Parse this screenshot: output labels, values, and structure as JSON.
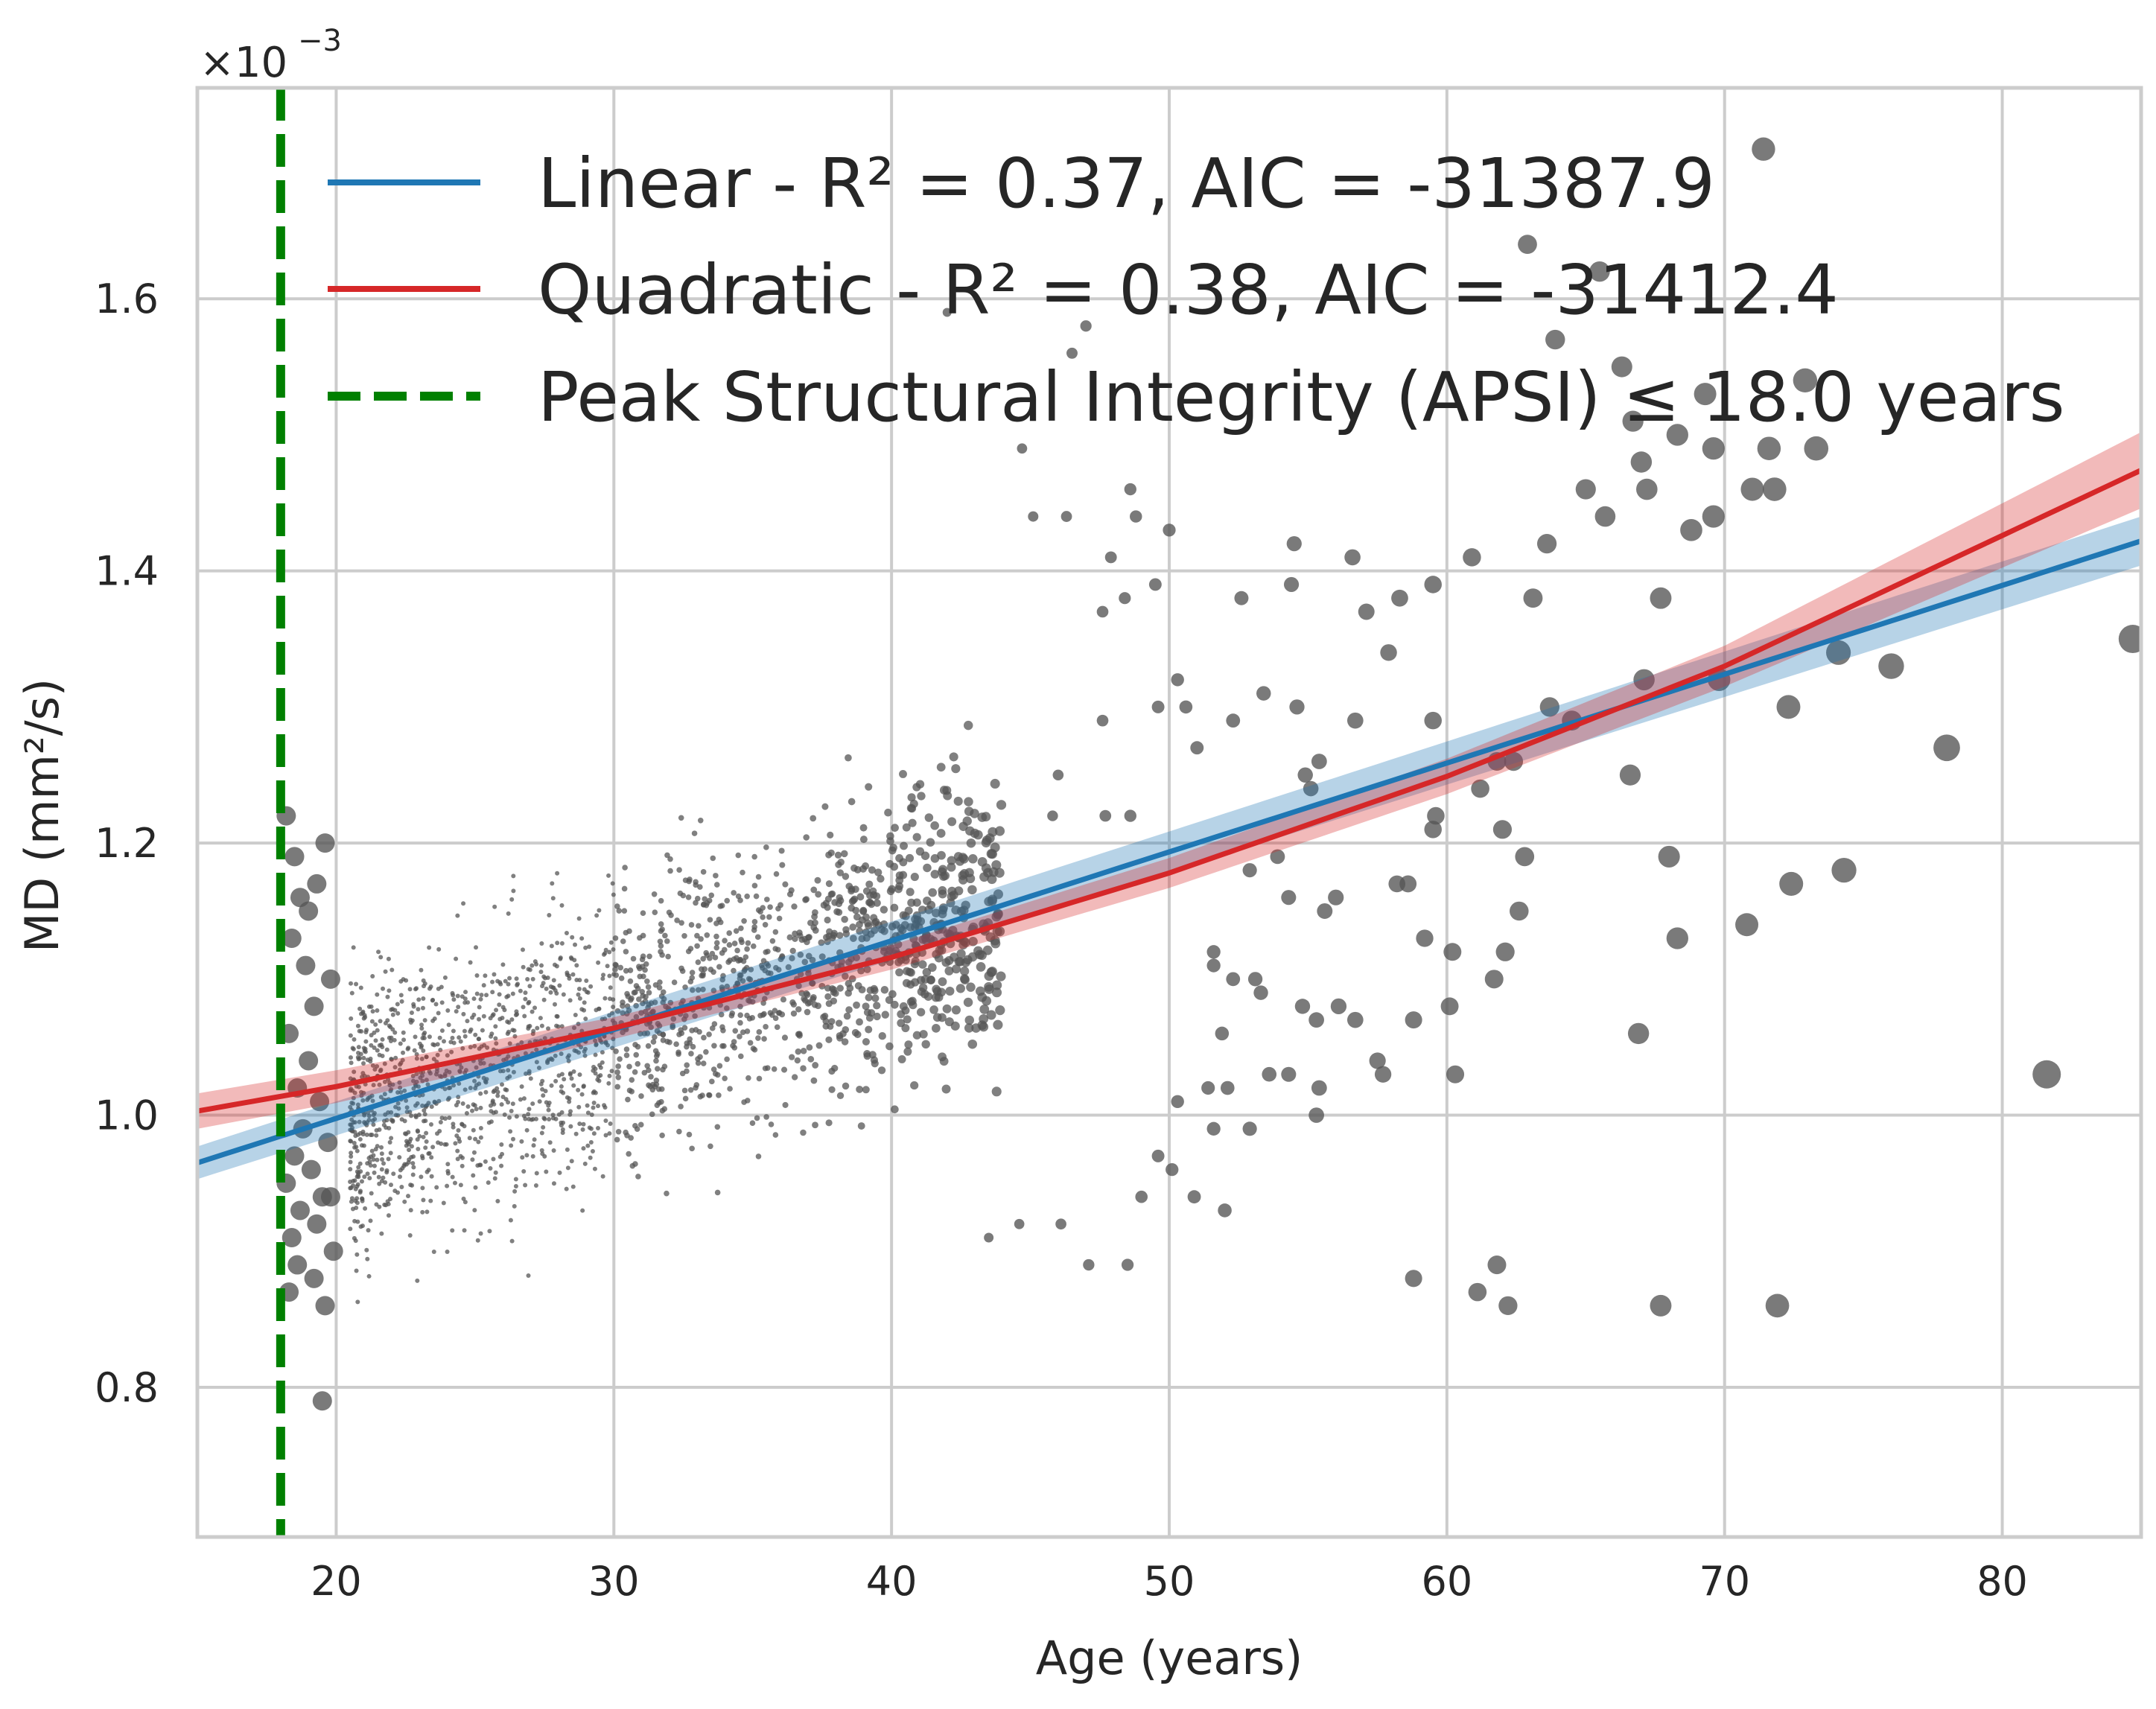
{
  "chart_data": {
    "type": "scatter",
    "xlabel": "Age (years)",
    "ylabel": "MD (mm²/s)",
    "y_multiplier": {
      "base": "×10",
      "exponent": "−3"
    },
    "xlim": [
      15,
      85
    ],
    "ylim": [
      0.69,
      1.755
    ],
    "xticks": [
      20,
      30,
      40,
      50,
      60,
      70,
      80
    ],
    "yticks": [
      0.8,
      1.0,
      1.2,
      1.4,
      1.6
    ],
    "xtick_labels": [
      "20",
      "30",
      "40",
      "50",
      "60",
      "70",
      "80"
    ],
    "ytick_labels": [
      "0.8",
      "1.0",
      "1.2",
      "1.4",
      "1.6"
    ],
    "grid": true,
    "legend_position": "top",
    "colors": {
      "linear": "#1f77b4",
      "quadratic": "#d62728",
      "apsi": "#008000",
      "points": "#555555",
      "grid": "#cccccc"
    },
    "series": [
      {
        "name": "Linear - R² = 0.37, AIC = -31387.9",
        "type": "line",
        "x": [
          15,
          85
        ],
        "y": [
          0.965,
          1.422
        ],
        "ci_halfwidth": [
          0.012,
          0.018
        ]
      },
      {
        "name": "Quadratic - R² = 0.38, AIC = -31412.4",
        "type": "line",
        "x": [
          15,
          20,
          30,
          40,
          50,
          60,
          70,
          85
        ],
        "y": [
          1.003,
          1.021,
          1.064,
          1.116,
          1.178,
          1.249,
          1.33,
          1.474
        ],
        "ci_halfwidth": [
          0.013,
          0.012,
          0.008,
          0.009,
          0.011,
          0.013,
          0.015,
          0.028
        ]
      },
      {
        "name": "Peak Structural Integrity (APSI) ≤ 18.0 years",
        "type": "vline",
        "x": 18.0
      }
    ],
    "scatter": {
      "note_size_grows_with_age": true,
      "points": [
        [
          18.2,
          1.22,
          2
        ],
        [
          18.5,
          1.19,
          2
        ],
        [
          18.7,
          1.16,
          2
        ],
        [
          19.0,
          1.15,
          2
        ],
        [
          19.3,
          1.17,
          2
        ],
        [
          19.6,
          1.2,
          2
        ],
        [
          18.4,
          1.13,
          2
        ],
        [
          18.9,
          1.11,
          2
        ],
        [
          19.8,
          1.1,
          2
        ],
        [
          19.2,
          1.08,
          2
        ],
        [
          18.3,
          1.06,
          2
        ],
        [
          19.0,
          1.04,
          2
        ],
        [
          18.6,
          1.02,
          2
        ],
        [
          19.4,
          1.01,
          2
        ],
        [
          18.8,
          0.99,
          2
        ],
        [
          19.7,
          0.98,
          2
        ],
        [
          18.5,
          0.97,
          2
        ],
        [
          19.1,
          0.96,
          2
        ],
        [
          18.2,
          0.95,
          2
        ],
        [
          19.5,
          0.94,
          2
        ],
        [
          18.7,
          0.93,
          2
        ],
        [
          19.3,
          0.92,
          2
        ],
        [
          18.4,
          0.91,
          2
        ],
        [
          19.9,
          0.9,
          2
        ],
        [
          18.6,
          0.89,
          2
        ],
        [
          19.2,
          0.88,
          2
        ],
        [
          18.3,
          0.87,
          2
        ],
        [
          19.6,
          0.86,
          2
        ],
        [
          19.5,
          0.79,
          2
        ],
        [
          19.8,
          0.94,
          2
        ],
        [
          44.7,
          1.49,
          1
        ],
        [
          42.0,
          1.59,
          1
        ],
        [
          46.5,
          1.56,
          1
        ],
        [
          47.0,
          1.58,
          1
        ],
        [
          48.6,
          1.46,
          1
        ],
        [
          48.8,
          1.44,
          1
        ],
        [
          46.3,
          1.44,
          1
        ],
        [
          45.1,
          1.44,
          1
        ],
        [
          50.0,
          1.43,
          1
        ],
        [
          47.9,
          1.41,
          1
        ],
        [
          49.5,
          1.39,
          1
        ],
        [
          48.4,
          1.38,
          1
        ],
        [
          47.6,
          1.37,
          1
        ],
        [
          52.6,
          1.38,
          1
        ],
        [
          54.4,
          1.39,
          1
        ],
        [
          54.5,
          1.42,
          1
        ],
        [
          56.6,
          1.41,
          1
        ],
        [
          59.5,
          1.39,
          1
        ],
        [
          57.9,
          1.34,
          1
        ],
        [
          58.3,
          1.38,
          1
        ],
        [
          57.1,
          1.37,
          1
        ],
        [
          50.3,
          1.32,
          1
        ],
        [
          50.6,
          1.3,
          1
        ],
        [
          53.4,
          1.31,
          1
        ],
        [
          54.6,
          1.3,
          1
        ],
        [
          56.7,
          1.29,
          1
        ],
        [
          51.0,
          1.27,
          1
        ],
        [
          52.3,
          1.29,
          1
        ],
        [
          55.4,
          1.26,
          1
        ],
        [
          54.9,
          1.25,
          1
        ],
        [
          55.1,
          1.24,
          1
        ],
        [
          49.6,
          1.3,
          1
        ],
        [
          47.6,
          1.29,
          1
        ],
        [
          46.0,
          1.25,
          1
        ],
        [
          45.8,
          1.22,
          1
        ],
        [
          47.7,
          1.22,
          1
        ],
        [
          48.6,
          1.22,
          1
        ],
        [
          52.9,
          1.18,
          1
        ],
        [
          53.9,
          1.19,
          1
        ],
        [
          54.3,
          1.16,
          1
        ],
        [
          55.6,
          1.15,
          1
        ],
        [
          56.0,
          1.16,
          1
        ],
        [
          51.6,
          1.12,
          1
        ],
        [
          51.6,
          1.11,
          1
        ],
        [
          52.3,
          1.1,
          1
        ],
        [
          53.1,
          1.1,
          1
        ],
        [
          53.3,
          1.09,
          1
        ],
        [
          54.8,
          1.08,
          1
        ],
        [
          55.3,
          1.07,
          1
        ],
        [
          56.1,
          1.08,
          1
        ],
        [
          56.7,
          1.07,
          1
        ],
        [
          51.9,
          1.06,
          1
        ],
        [
          53.6,
          1.03,
          1
        ],
        [
          54.3,
          1.03,
          1
        ],
        [
          55.4,
          1.02,
          1
        ],
        [
          50.3,
          1.01,
          1
        ],
        [
          51.4,
          1.02,
          1
        ],
        [
          52.1,
          1.02,
          1
        ],
        [
          51.6,
          0.99,
          1
        ],
        [
          52.9,
          0.99,
          1
        ],
        [
          50.1,
          0.96,
          1
        ],
        [
          50.9,
          0.94,
          1
        ],
        [
          52.0,
          0.93,
          1
        ],
        [
          55.3,
          1.0,
          1
        ],
        [
          49.6,
          0.97,
          1
        ],
        [
          49.0,
          0.94,
          1
        ],
        [
          47.1,
          0.89,
          1
        ],
        [
          48.5,
          0.89,
          1
        ],
        [
          46.1,
          0.92,
          1
        ],
        [
          43.5,
          0.91,
          1
        ],
        [
          44.6,
          0.92,
          1
        ],
        [
          60.9,
          1.41,
          1
        ],
        [
          61.2,
          1.24,
          1
        ],
        [
          61.8,
          1.26,
          1
        ],
        [
          62.0,
          1.21,
          1
        ],
        [
          62.4,
          1.26,
          1
        ],
        [
          62.8,
          1.19,
          1
        ],
        [
          62.6,
          1.15,
          1
        ],
        [
          62.1,
          1.12,
          1
        ],
        [
          61.7,
          1.1,
          1
        ],
        [
          60.2,
          1.12,
          1
        ],
        [
          59.2,
          1.13,
          1
        ],
        [
          60.1,
          1.08,
          1
        ],
        [
          58.2,
          1.17,
          1
        ],
        [
          58.6,
          1.17,
          1
        ],
        [
          59.5,
          1.21,
          1
        ],
        [
          59.6,
          1.22,
          1
        ],
        [
          59.5,
          1.29,
          1
        ],
        [
          63.1,
          1.38,
          1
        ],
        [
          62.9,
          1.64,
          1
        ],
        [
          63.9,
          1.57,
          1
        ],
        [
          63.6,
          1.42,
          1
        ],
        [
          63.7,
          1.3,
          1
        ],
        [
          64.5,
          1.29,
          1
        ],
        [
          57.5,
          1.04,
          1
        ],
        [
          57.7,
          1.03,
          1
        ],
        [
          58.8,
          1.07,
          1
        ],
        [
          60.3,
          1.03,
          1
        ],
        [
          58.8,
          0.88,
          1
        ],
        [
          61.1,
          0.87,
          1
        ],
        [
          61.8,
          0.89,
          1
        ],
        [
          62.2,
          0.86,
          1
        ],
        [
          65.0,
          1.46,
          1
        ],
        [
          65.7,
          1.44,
          1
        ],
        [
          65.5,
          1.62,
          1
        ],
        [
          66.3,
          1.55,
          1
        ],
        [
          66.7,
          1.51,
          1
        ],
        [
          67.0,
          1.48,
          1
        ],
        [
          67.2,
          1.46,
          1
        ],
        [
          68.3,
          1.5,
          1
        ],
        [
          68.8,
          1.43,
          1
        ],
        [
          69.3,
          1.53,
          1
        ],
        [
          69.6,
          1.44,
          1
        ],
        [
          69.6,
          1.49,
          1
        ],
        [
          67.7,
          1.38,
          1
        ],
        [
          67.1,
          1.32,
          1
        ],
        [
          66.6,
          1.25,
          1
        ],
        [
          68.0,
          1.19,
          1
        ],
        [
          68.3,
          1.13,
          1
        ],
        [
          66.9,
          1.06,
          1
        ],
        [
          67.7,
          0.86,
          1
        ],
        [
          69.8,
          1.32,
          1
        ],
        [
          70.8,
          1.14,
          1
        ],
        [
          71.0,
          1.46,
          1
        ],
        [
          71.6,
          1.49,
          1
        ],
        [
          71.8,
          1.46,
          1
        ],
        [
          72.9,
          1.54,
          1
        ],
        [
          73.3,
          1.49,
          1
        ],
        [
          72.3,
          1.3,
          1
        ],
        [
          72.4,
          1.17,
          1
        ],
        [
          71.9,
          0.86,
          1
        ],
        [
          71.4,
          1.71,
          1
        ],
        [
          74.1,
          1.34,
          1
        ],
        [
          74.3,
          1.18,
          1
        ],
        [
          76.0,
          1.33,
          1
        ],
        [
          78.0,
          1.27,
          1
        ],
        [
          81.6,
          1.03,
          1
        ],
        [
          84.7,
          1.35,
          1
        ]
      ]
    }
  }
}
